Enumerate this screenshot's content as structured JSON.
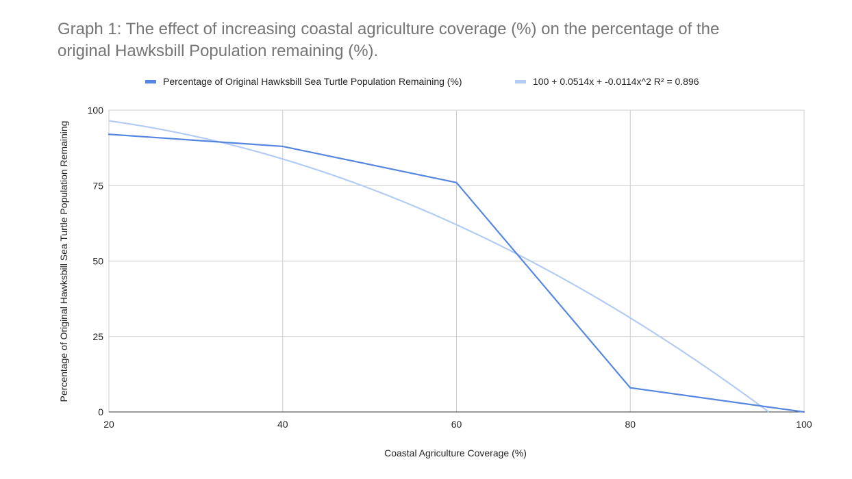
{
  "chart_data": {
    "type": "line",
    "title_line1": "Graph 1: The effect of increasing coastal agriculture coverage (%) on the percentage of the",
    "title_line2": "original Hawksbill Population remaining (%).",
    "xlabel": "Coastal Agriculture Coverage (%)",
    "ylabel": "Percentage of Original Hawksbill Sea Turtle Population Remaining",
    "xlim": [
      20,
      100
    ],
    "ylim": [
      0,
      100
    ],
    "x_ticks": [
      20,
      40,
      60,
      80,
      100
    ],
    "y_ticks": [
      0,
      25,
      50,
      75,
      100
    ],
    "grid": true,
    "legend_position": "top",
    "series": [
      {
        "name": "Percentage of Original Hawksbill Sea Turtle Population Remaining (%)",
        "color": "#5586e0",
        "x": [
          20,
          40,
          60,
          80,
          100
        ],
        "y": [
          92,
          88,
          76,
          8,
          0
        ]
      }
    ],
    "trendline": {
      "label": "100 + 0.0514x + -0.0114x^2 R² = 0.896",
      "color": "#b3ccf5",
      "type": "polynomial",
      "coefficients": {
        "c0": 100,
        "c1": 0.0514,
        "c2": -0.0114
      }
    }
  }
}
